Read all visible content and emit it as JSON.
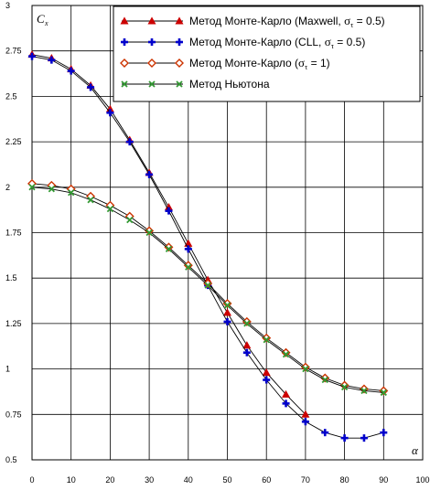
{
  "chart_data": {
    "type": "line",
    "ylabel": "C",
    "ylabel_sub": "x",
    "xlabel": "α",
    "xlim": [
      0,
      100
    ],
    "ylim": [
      0.5,
      3
    ],
    "xticks": [
      "0",
      "10",
      "20",
      "30",
      "40",
      "50",
      "60",
      "70",
      "80",
      "90",
      "100"
    ],
    "yticks": [
      "0.5",
      "0.75",
      "1",
      "1.25",
      "1.5",
      "1.75",
      "2",
      "2.25",
      "2.5",
      "2.75",
      "3"
    ],
    "grid": true,
    "legend_position": "top-right",
    "series": [
      {
        "name": "Метод Монте-Карло (Maxwell, στ = 0.5)",
        "marker": "triangle",
        "color": "#cc0000",
        "x": [
          0,
          5,
          10,
          15,
          20,
          25,
          30,
          35,
          40,
          45,
          50,
          55,
          60,
          65,
          70
        ],
        "y": [
          2.73,
          2.71,
          2.65,
          2.56,
          2.43,
          2.26,
          2.08,
          1.89,
          1.69,
          1.49,
          1.31,
          1.13,
          0.98,
          0.86,
          0.75
        ]
      },
      {
        "name": "Метод Монте-Карло (CLL, στ = 0.5)",
        "marker": "plus",
        "color": "#0000cc",
        "x": [
          0,
          5,
          10,
          15,
          20,
          25,
          30,
          35,
          40,
          45,
          50,
          55,
          60,
          65,
          70,
          75,
          80,
          85,
          90
        ],
        "y": [
          2.72,
          2.7,
          2.64,
          2.55,
          2.41,
          2.25,
          2.07,
          1.87,
          1.66,
          1.46,
          1.26,
          1.09,
          0.94,
          0.81,
          0.71,
          0.65,
          0.62,
          0.62,
          0.65
        ]
      },
      {
        "name": "Метод Монте-Карло (στ = 1)",
        "marker": "diamond",
        "color": "#cc3300",
        "x": [
          0,
          5,
          10,
          15,
          20,
          25,
          30,
          35,
          40,
          45,
          50,
          55,
          60,
          65,
          70,
          75,
          80,
          85,
          90
        ],
        "y": [
          2.02,
          2.01,
          1.99,
          1.95,
          1.9,
          1.84,
          1.76,
          1.67,
          1.57,
          1.47,
          1.36,
          1.26,
          1.17,
          1.09,
          1.01,
          0.95,
          0.91,
          0.89,
          0.88
        ]
      },
      {
        "name": "Метод Ньютона",
        "marker": "x",
        "color": "#339933",
        "x": [
          0,
          5,
          10,
          15,
          20,
          25,
          30,
          35,
          40,
          45,
          50,
          55,
          60,
          65,
          70,
          75,
          80,
          85,
          90
        ],
        "y": [
          2.0,
          1.99,
          1.97,
          1.93,
          1.88,
          1.82,
          1.75,
          1.66,
          1.56,
          1.46,
          1.35,
          1.25,
          1.16,
          1.08,
          1.0,
          0.94,
          0.9,
          0.88,
          0.87
        ]
      }
    ]
  },
  "legend": {
    "items": [
      {
        "prefix": "Метод Монте-Карло (Maxwell, ",
        "sigma": "σ",
        "sub": "τ",
        "suffix": " = 0.5)"
      },
      {
        "prefix": "Метод Монте-Карло (CLL, ",
        "sigma": "σ",
        "sub": "τ",
        "suffix": " = 0.5)"
      },
      {
        "prefix": "Метод Монте-Карло (",
        "sigma": "σ",
        "sub": "τ",
        "suffix": " = 1)"
      },
      {
        "prefix": "Метод Ньютона",
        "sigma": "",
        "sub": "",
        "suffix": ""
      }
    ]
  }
}
